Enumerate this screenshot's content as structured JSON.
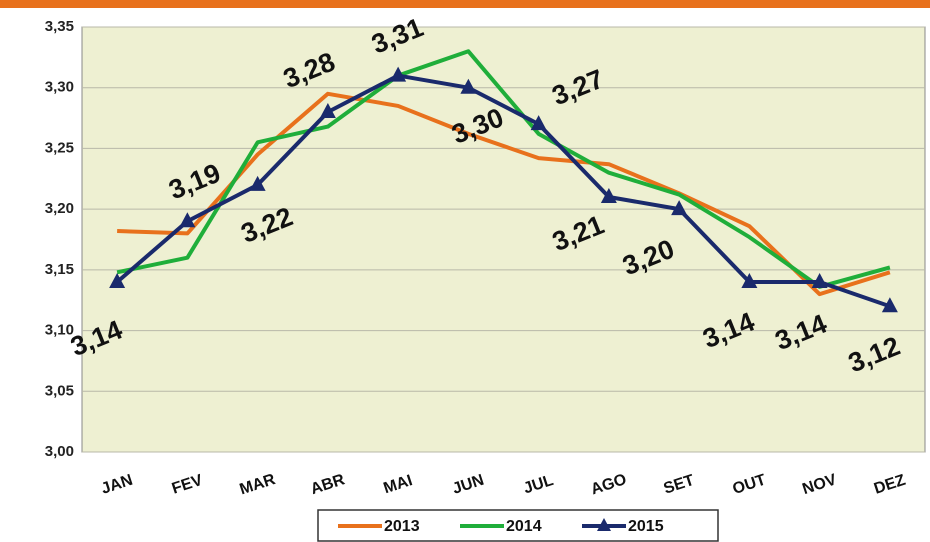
{
  "chart_data": {
    "type": "line",
    "categories": [
      "JAN",
      "FEV",
      "MAR",
      "ABR",
      "MAI",
      "JUN",
      "JUL",
      "AGO",
      "SET",
      "OUT",
      "NOV",
      "DEZ"
    ],
    "series": [
      {
        "name": "2013",
        "color": "#e8711c",
        "values": [
          3.182,
          3.18,
          3.245,
          3.295,
          3.285,
          3.262,
          3.242,
          3.237,
          3.213,
          3.186,
          3.13,
          3.148
        ]
      },
      {
        "name": "2014",
        "color": "#1fae3a",
        "values": [
          3.148,
          3.16,
          3.255,
          3.268,
          3.31,
          3.33,
          3.262,
          3.23,
          3.212,
          3.177,
          3.136,
          3.152
        ]
      },
      {
        "name": "2015",
        "color": "#1a2a6c",
        "marker": "triangle",
        "values": [
          3.14,
          3.19,
          3.22,
          3.28,
          3.31,
          3.3,
          3.27,
          3.21,
          3.2,
          3.14,
          3.14,
          3.12
        ],
        "value_labels": [
          "3,14",
          "3,19",
          "3,22",
          "3,28",
          "3,31",
          "3,30",
          "3,27",
          "3,21",
          "3,20",
          "3,14",
          "3,14",
          "3,12"
        ]
      }
    ],
    "ylim": [
      3.0,
      3.35
    ],
    "yticks": [
      {
        "value": 3.0,
        "label": "3,00"
      },
      {
        "value": 3.05,
        "label": "3,05"
      },
      {
        "value": 3.1,
        "label": "3,10"
      },
      {
        "value": 3.15,
        "label": "3,15"
      },
      {
        "value": 3.2,
        "label": "3,20"
      },
      {
        "value": 3.25,
        "label": "3,25"
      },
      {
        "value": 3.3,
        "label": "3,30"
      },
      {
        "value": 3.35,
        "label": "3,35"
      }
    ],
    "grid": true
  }
}
